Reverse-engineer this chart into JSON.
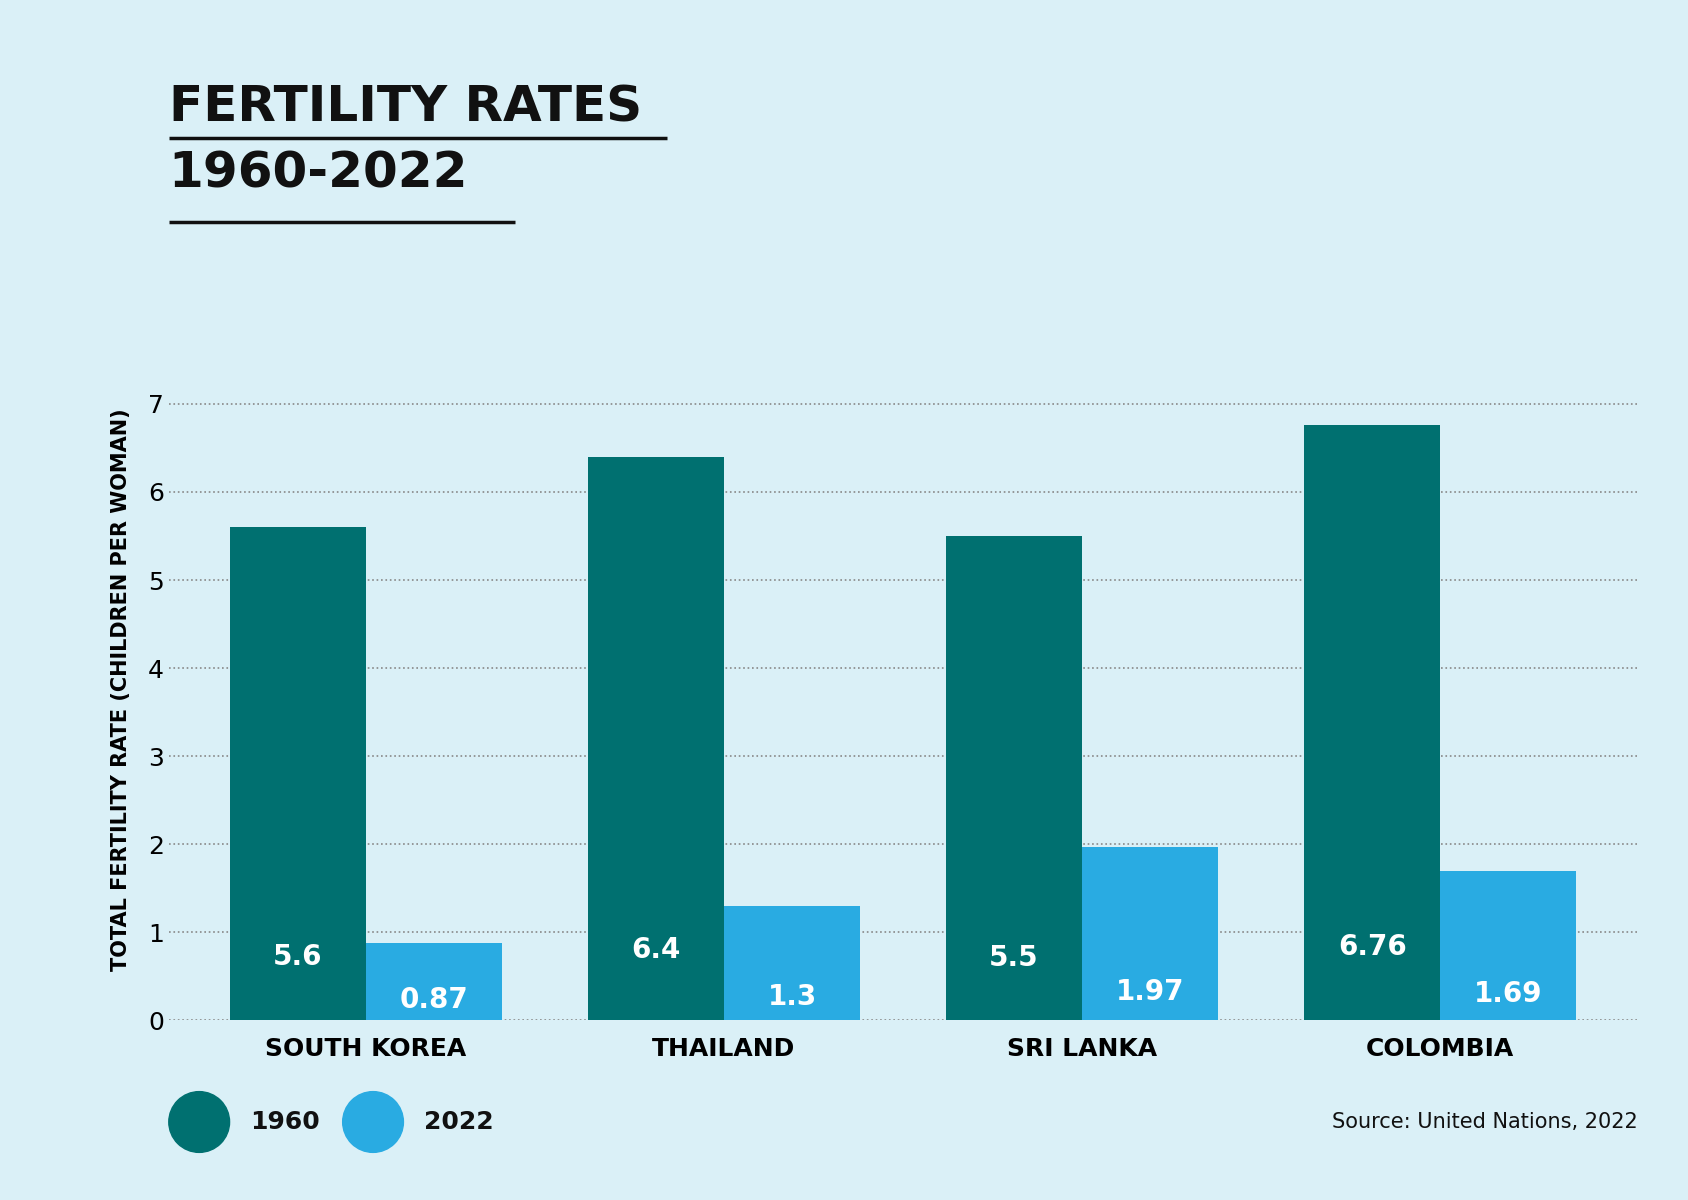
{
  "title_line1": "FERTILITY RATES",
  "title_line2": "1960-2022",
  "categories": [
    "SOUTH KOREA",
    "THAILAND",
    "SRI LANKA",
    "COLOMBIA"
  ],
  "values_1960": [
    5.6,
    6.4,
    5.5,
    6.76
  ],
  "values_2022": [
    0.87,
    1.3,
    1.97,
    1.69
  ],
  "color_1960": "#007070",
  "color_2022": "#29ABE2",
  "background_color": "#DAF0F7",
  "ylabel": "TOTAL FERTILITY RATE (CHILDREN PER WOMAN)",
  "ylim": [
    0,
    7.5
  ],
  "yticks": [
    0,
    1,
    2,
    3,
    4,
    5,
    6,
    7
  ],
  "source_text": "Source: United Nations, 2022",
  "legend_1960": "1960",
  "legend_2022": "2022",
  "bar_width": 0.38,
  "title_fontsize": 36,
  "ylabel_fontsize": 15,
  "tick_fontsize": 18,
  "label_fontsize": 20,
  "xtick_fontsize": 18,
  "source_fontsize": 15,
  "legend_fontsize": 18
}
